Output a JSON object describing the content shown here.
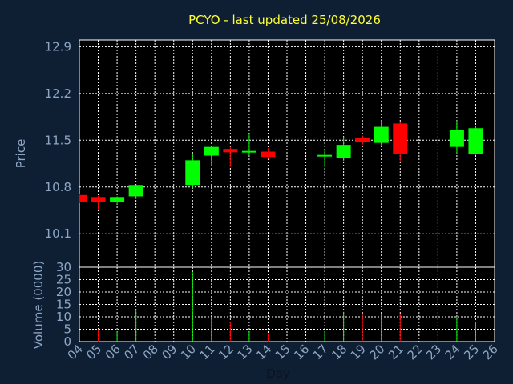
{
  "chart_data": {
    "type": "candlestick",
    "title": "PCYO - last updated 25/08/2026",
    "xlabel": "Day",
    "price_panel": {
      "ylabel": "Price",
      "ylim": [
        9.6,
        13.0
      ],
      "yticks": [
        "12.9",
        "12.2",
        "11.5",
        "10.8",
        "10.1"
      ],
      "ytick_values": [
        12.9,
        12.2,
        11.5,
        10.8,
        10.1
      ]
    },
    "volume_panel": {
      "ylabel": "Volume (0000)",
      "ylim": [
        0,
        30
      ],
      "yticks": [
        "30",
        "25",
        "20",
        "15",
        "10",
        "5",
        "0"
      ],
      "ytick_values": [
        30,
        25,
        20,
        15,
        10,
        5,
        0
      ]
    },
    "x_range": [
      4,
      26
    ],
    "xticks": [
      "04",
      "05",
      "06",
      "07",
      "08",
      "09",
      "10",
      "11",
      "12",
      "13",
      "14",
      "15",
      "16",
      "17",
      "18",
      "19",
      "20",
      "21",
      "22",
      "23",
      "24",
      "25",
      "26"
    ],
    "grid": true,
    "colors": {
      "up": "#00ff00",
      "down": "#ff0000",
      "background": "#0f1f33",
      "plot": "#000000",
      "grid": "#ffffff"
    },
    "candles": [
      {
        "day": 4,
        "open": 10.68,
        "high": 10.7,
        "low": 10.56,
        "close": 10.58
      },
      {
        "day": 5,
        "open": 10.65,
        "high": 10.67,
        "low": 10.45,
        "close": 10.57
      },
      {
        "day": 6,
        "open": 10.57,
        "high": 10.66,
        "low": 10.54,
        "close": 10.65
      },
      {
        "day": 7,
        "open": 10.66,
        "high": 10.83,
        "low": 10.62,
        "close": 10.83
      },
      {
        "day": 10,
        "open": 10.83,
        "high": 11.3,
        "low": 10.78,
        "close": 11.2
      },
      {
        "day": 11,
        "open": 11.27,
        "high": 11.4,
        "low": 11.12,
        "close": 11.4
      },
      {
        "day": 12,
        "open": 11.37,
        "high": 11.4,
        "low": 11.1,
        "close": 11.32
      },
      {
        "day": 13,
        "open": 11.32,
        "high": 11.6,
        "low": 11.27,
        "close": 11.34
      },
      {
        "day": 14,
        "open": 11.33,
        "high": 11.38,
        "low": 11.22,
        "close": 11.25
      },
      {
        "day": 17,
        "open": 11.26,
        "high": 11.35,
        "low": 11.1,
        "close": 11.28
      },
      {
        "day": 18,
        "open": 11.24,
        "high": 11.55,
        "low": 11.19,
        "close": 11.43
      },
      {
        "day": 19,
        "open": 11.54,
        "high": 11.57,
        "low": 11.43,
        "close": 11.47
      },
      {
        "day": 20,
        "open": 11.46,
        "high": 11.8,
        "low": 11.42,
        "close": 11.7
      },
      {
        "day": 21,
        "open": 11.75,
        "high": 11.77,
        "low": 11.18,
        "close": 11.3
      },
      {
        "day": 24,
        "open": 11.4,
        "high": 11.79,
        "low": 11.3,
        "close": 11.65
      },
      {
        "day": 25,
        "open": 11.3,
        "high": 11.72,
        "low": 11.28,
        "close": 11.68
      }
    ],
    "volume": [
      {
        "day": 5,
        "value": 5,
        "dir": "down"
      },
      {
        "day": 6,
        "value": 4,
        "dir": "up"
      },
      {
        "day": 7,
        "value": 13,
        "dir": "up"
      },
      {
        "day": 10,
        "value": 28,
        "dir": "up"
      },
      {
        "day": 11,
        "value": 10,
        "dir": "up"
      },
      {
        "day": 12,
        "value": 8,
        "dir": "down"
      },
      {
        "day": 13,
        "value": 4,
        "dir": "up"
      },
      {
        "day": 14,
        "value": 3,
        "dir": "down"
      },
      {
        "day": 17,
        "value": 4,
        "dir": "up"
      },
      {
        "day": 18,
        "value": 12,
        "dir": "up"
      },
      {
        "day": 19,
        "value": 11,
        "dir": "down"
      },
      {
        "day": 20,
        "value": 11,
        "dir": "up"
      },
      {
        "day": 21,
        "value": 11,
        "dir": "down"
      },
      {
        "day": 24,
        "value": 10,
        "dir": "up"
      },
      {
        "day": 25,
        "value": 8,
        "dir": "up"
      }
    ]
  }
}
